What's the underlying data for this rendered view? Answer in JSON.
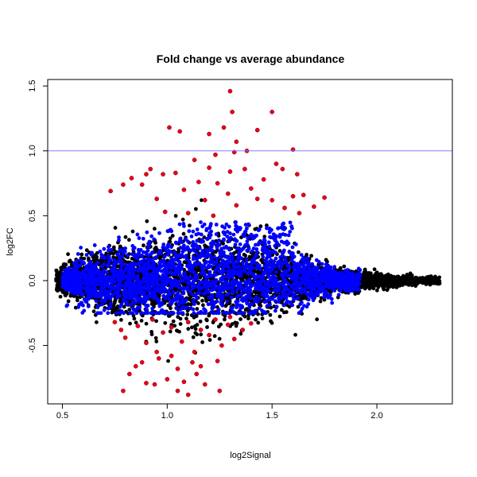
{
  "chart_data": {
    "type": "scatter",
    "title": "Fold change vs average abundance",
    "xlabel": "log2Signal",
    "ylabel": "log2FC",
    "xlim": [
      0.43,
      2.36
    ],
    "ylim": [
      -0.95,
      1.55
    ],
    "x_ticks": [
      0.5,
      1.0,
      1.5,
      2.0
    ],
    "x_tick_labels": [
      "0.5",
      "1.0",
      "1.5",
      "2.0"
    ],
    "y_ticks": [
      -0.5,
      0.0,
      0.5,
      1.0,
      1.5
    ],
    "y_tick_labels": [
      "-0.5",
      "0.0",
      "0.5",
      "1.0",
      "1.5"
    ],
    "grid": false,
    "legend": "none",
    "reference_line": {
      "y": 1.0,
      "color": "#8080ff"
    },
    "series_colors": {
      "all": "#000000",
      "blue": "#0000ff",
      "red": "#e8001c"
    },
    "red_points": [
      [
        1.3,
        1.46
      ],
      [
        1.5,
        1.3
      ],
      [
        1.31,
        1.3
      ],
      [
        1.01,
        1.18
      ],
      [
        1.27,
        1.18
      ],
      [
        1.06,
        1.15
      ],
      [
        1.43,
        1.16
      ],
      [
        1.2,
        1.13
      ],
      [
        1.33,
        1.07
      ],
      [
        1.6,
        1.01
      ],
      [
        1.32,
        0.99
      ],
      [
        1.38,
        1.0
      ],
      [
        1.13,
        0.93
      ],
      [
        1.23,
        0.97
      ],
      [
        1.04,
        0.83
      ],
      [
        0.98,
        0.82
      ],
      [
        0.92,
        0.86
      ],
      [
        0.83,
        0.79
      ],
      [
        0.9,
        0.82
      ],
      [
        1.2,
        0.87
      ],
      [
        1.3,
        0.84
      ],
      [
        1.37,
        0.86
      ],
      [
        1.52,
        0.9
      ],
      [
        1.55,
        0.86
      ],
      [
        1.62,
        0.82
      ],
      [
        1.15,
        0.76
      ],
      [
        1.24,
        0.75
      ],
      [
        1.46,
        0.78
      ],
      [
        0.79,
        0.74
      ],
      [
        0.88,
        0.74
      ],
      [
        0.73,
        0.69
      ],
      [
        1.08,
        0.7
      ],
      [
        1.4,
        0.71
      ],
      [
        1.6,
        0.65
      ],
      [
        1.65,
        0.66
      ],
      [
        1.75,
        0.64
      ],
      [
        1.5,
        0.62
      ],
      [
        1.43,
        0.63
      ],
      [
        1.29,
        0.67
      ],
      [
        1.18,
        0.62
      ],
      [
        0.95,
        0.63
      ],
      [
        1.33,
        0.58
      ],
      [
        1.56,
        0.56
      ],
      [
        1.7,
        0.57
      ],
      [
        1.22,
        0.5
      ],
      [
        1.1,
        0.52
      ],
      [
        0.99,
        0.53
      ],
      [
        1.63,
        0.52
      ],
      [
        0.75,
        -0.32
      ],
      [
        0.78,
        -0.38
      ],
      [
        0.8,
        -0.44
      ],
      [
        0.86,
        -0.35
      ],
      [
        0.9,
        -0.48
      ],
      [
        0.93,
        -0.3
      ],
      [
        0.95,
        -0.55
      ],
      [
        0.98,
        -0.4
      ],
      [
        1.02,
        -0.36
      ],
      [
        1.07,
        -0.47
      ],
      [
        1.1,
        -0.32
      ],
      [
        1.13,
        -0.55
      ],
      [
        1.16,
        -0.38
      ],
      [
        1.2,
        -0.42
      ],
      [
        1.23,
        -0.3
      ],
      [
        1.26,
        -0.5
      ],
      [
        1.29,
        -0.34
      ],
      [
        1.32,
        -0.45
      ],
      [
        1.36,
        -0.38
      ],
      [
        1.4,
        -0.33
      ],
      [
        0.96,
        -0.6
      ],
      [
        1.02,
        -0.58
      ],
      [
        0.88,
        -0.63
      ],
      [
        1.12,
        -0.63
      ],
      [
        0.82,
        -0.72
      ],
      [
        0.85,
        -0.66
      ],
      [
        1.05,
        -0.68
      ],
      [
        1.16,
        -0.66
      ],
      [
        1.24,
        -0.62
      ],
      [
        0.9,
        -0.79
      ],
      [
        0.94,
        -0.8
      ],
      [
        1.0,
        -0.76
      ],
      [
        1.08,
        -0.78
      ],
      [
        1.18,
        -0.8
      ],
      [
        1.05,
        -0.85
      ],
      [
        1.1,
        -0.88
      ],
      [
        1.25,
        -0.85
      ],
      [
        0.79,
        -0.85
      ],
      [
        1.14,
        -0.72
      ],
      [
        1.3,
        -0.28
      ]
    ]
  }
}
